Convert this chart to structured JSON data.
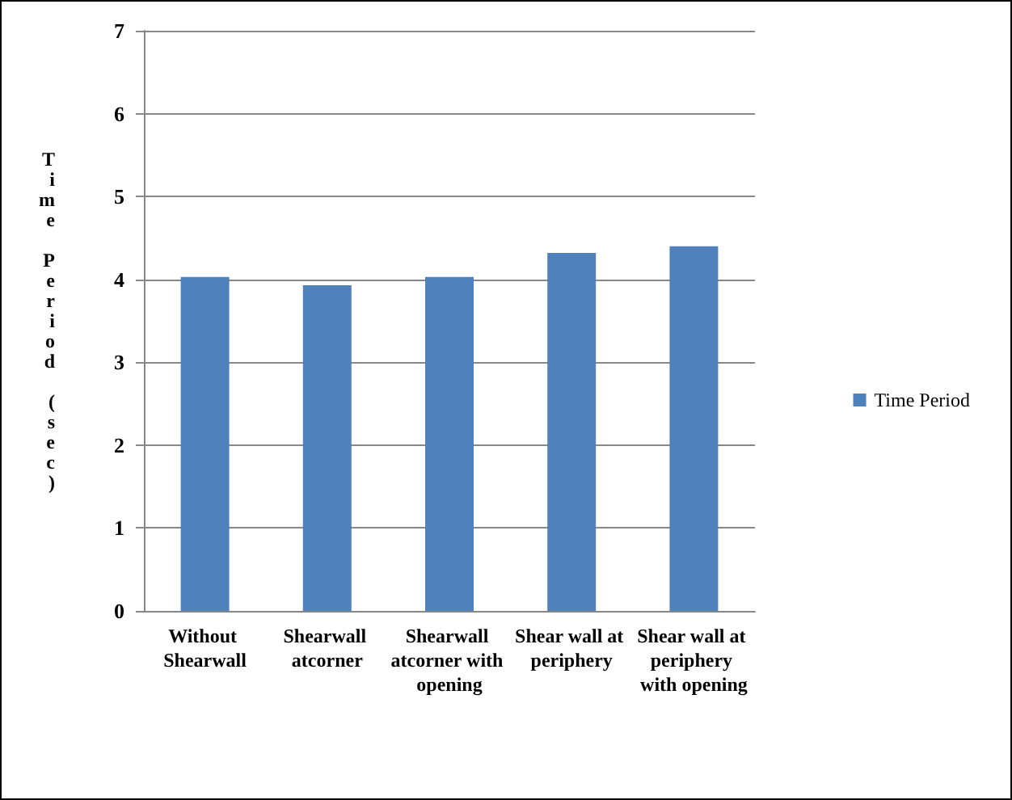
{
  "chart_data": {
    "type": "bar",
    "ylabel": "Time Period (sec)",
    "categories": [
      "Without Shearwall",
      "Shearwall atcorner",
      "Shearwall atcorner with opening",
      "Shear wall at periphery",
      "Shear wall at periphery with opening"
    ],
    "series": [
      {
        "name": "Time Period",
        "color": "#4f81bd",
        "values": [
          4.03,
          3.93,
          4.03,
          4.32,
          4.4
        ]
      }
    ],
    "ylim": [
      0,
      7
    ],
    "yticks": [
      0,
      1,
      2,
      3,
      4,
      5,
      6,
      7
    ],
    "grid": "y",
    "legend": "right"
  }
}
